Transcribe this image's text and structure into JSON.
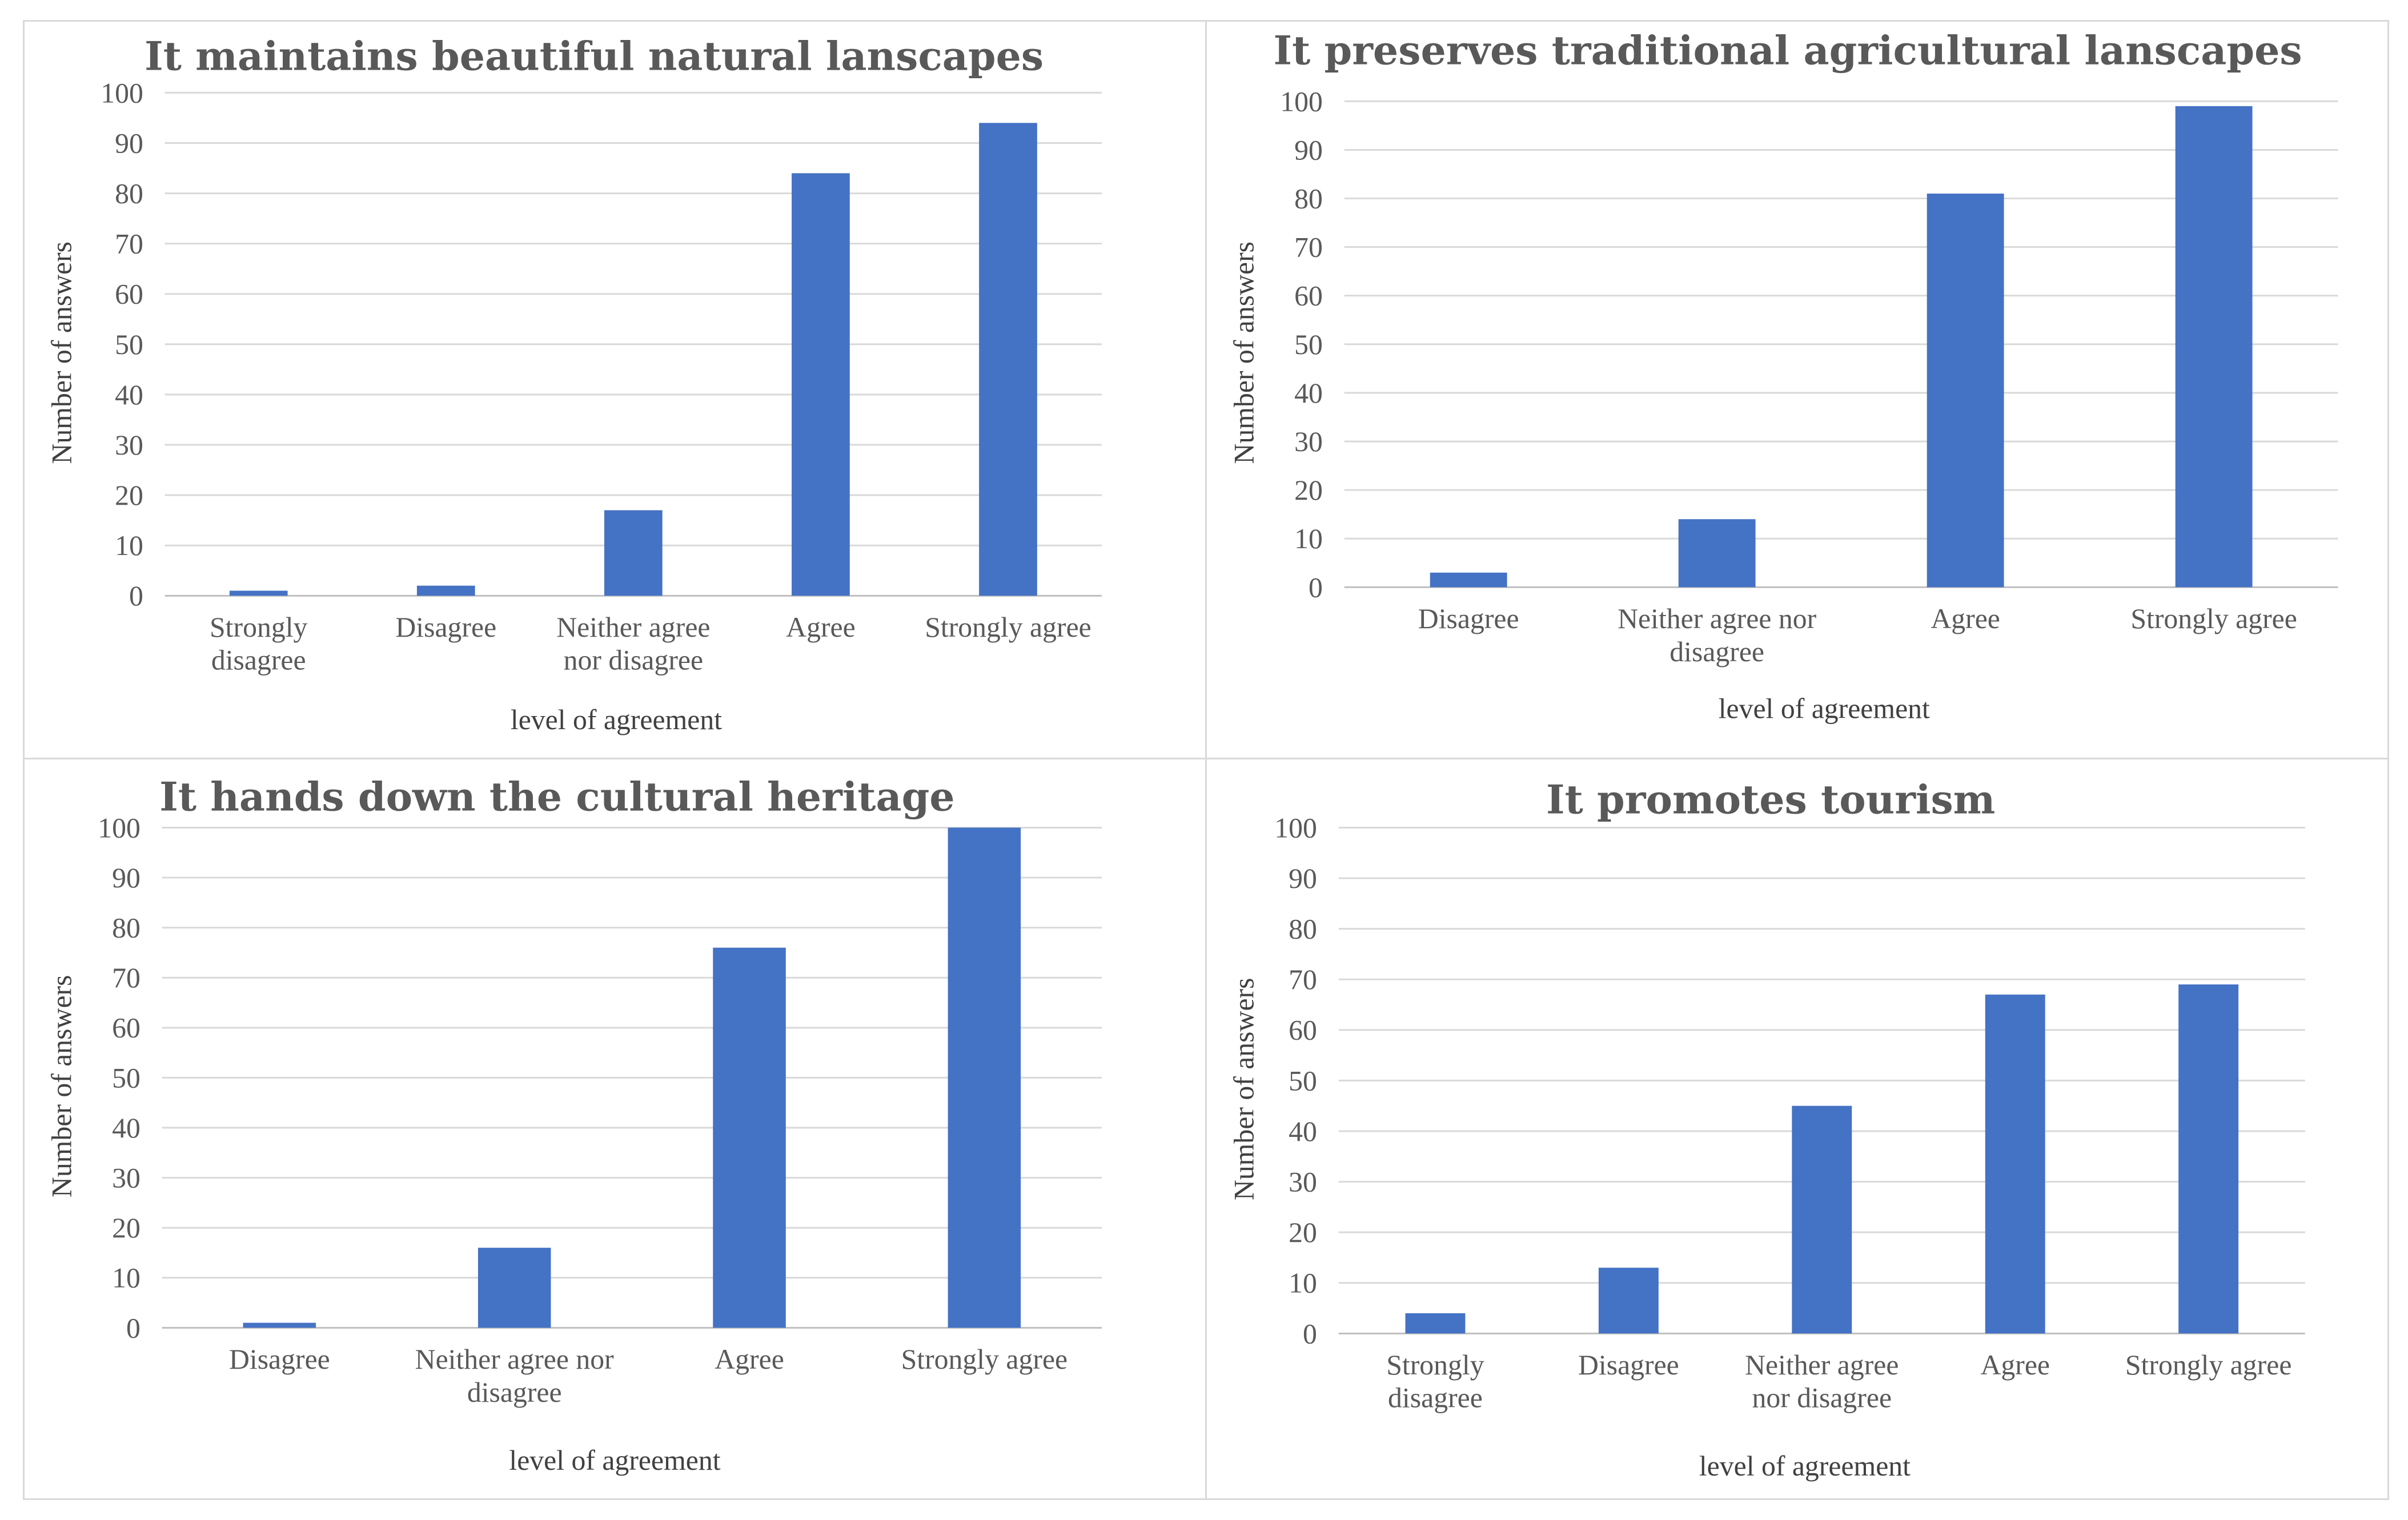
{
  "colors": {
    "bar": "#4472C4",
    "grid": "#D9D9D9",
    "text": "#595959"
  },
  "chart_data": [
    {
      "type": "bar",
      "title": "It maintains beautiful natural lanscapes",
      "xlabel": "level of agreement",
      "ylabel": "Number of answers",
      "ylim": [
        0,
        100
      ],
      "yticks": [
        "0",
        "10",
        "20",
        "30",
        "40",
        "50",
        "60",
        "70",
        "80",
        "90",
        "100"
      ],
      "categories": [
        [
          "Strongly",
          "disagree"
        ],
        [
          "Disagree"
        ],
        [
          "Neither agree",
          "nor disagree"
        ],
        [
          "Agree"
        ],
        [
          "Strongly agree"
        ]
      ],
      "values": [
        1,
        2,
        17,
        84,
        94
      ]
    },
    {
      "type": "bar",
      "title": "It preserves traditional agricultural lanscapes",
      "xlabel": "level of agreement",
      "ylabel": "Number of answers",
      "ylim": [
        0,
        100
      ],
      "yticks": [
        "0",
        "10",
        "20",
        "30",
        "40",
        "50",
        "60",
        "70",
        "80",
        "90",
        "100"
      ],
      "categories": [
        [
          "Disagree"
        ],
        [
          "Neither agree nor",
          "disagree"
        ],
        [
          "Agree"
        ],
        [
          "Strongly agree"
        ]
      ],
      "values": [
        3,
        14,
        81,
        99
      ]
    },
    {
      "type": "bar",
      "title": "It hands down the cultural heritage",
      "xlabel": "level of agreement",
      "ylabel": "Number of answers",
      "ylim": [
        0,
        100
      ],
      "yticks": [
        "0",
        "10",
        "20",
        "30",
        "40",
        "50",
        "60",
        "70",
        "80",
        "90",
        "100"
      ],
      "categories": [
        [
          "Disagree"
        ],
        [
          "Neither agree nor",
          "disagree"
        ],
        [
          "Agree"
        ],
        [
          "Strongly agree"
        ]
      ],
      "values": [
        1,
        16,
        76,
        100
      ]
    },
    {
      "type": "bar",
      "title": "It promotes tourism",
      "xlabel": "level of agreement",
      "ylabel": "Number of answers",
      "ylim": [
        0,
        100
      ],
      "yticks": [
        "0",
        "10",
        "20",
        "30",
        "40",
        "50",
        "60",
        "70",
        "80",
        "90",
        "100"
      ],
      "categories": [
        [
          "Strongly",
          "disagree"
        ],
        [
          "Disagree"
        ],
        [
          "Neither agree",
          "nor disagree"
        ],
        [
          "Agree"
        ],
        [
          "Strongly agree"
        ]
      ],
      "values": [
        4,
        13,
        45,
        67,
        69
      ]
    }
  ]
}
